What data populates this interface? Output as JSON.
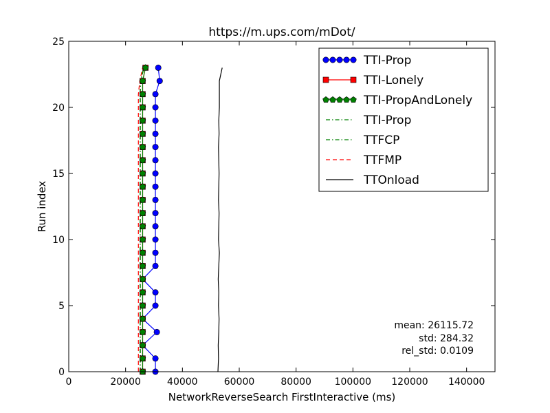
{
  "chart_data": {
    "type": "line",
    "title": "https://m.ups.com/mDot/",
    "xlabel": "NetworkReverseSearch FirstInteractive (ms)",
    "ylabel": "Run index",
    "xlim": [
      0,
      150000
    ],
    "ylim": [
      0,
      25
    ],
    "x_ticks": [
      0,
      20000,
      40000,
      60000,
      80000,
      100000,
      120000,
      140000
    ],
    "y_ticks": [
      0,
      5,
      10,
      15,
      20,
      25
    ],
    "x_tick_labels": [
      "0",
      "20000",
      "40000",
      "60000",
      "80000",
      "100000",
      "120000",
      "140000"
    ],
    "y_tick_labels": [
      "0",
      "5",
      "10",
      "15",
      "20",
      "25"
    ],
    "grid": false,
    "legend_position": "top-right",
    "y": [
      0,
      1,
      2,
      3,
      4,
      5,
      6,
      7,
      8,
      9,
      10,
      11,
      12,
      13,
      14,
      15,
      16,
      17,
      18,
      19,
      20,
      21,
      22,
      23
    ],
    "series": [
      {
        "name": "TTI-Prop",
        "color": "#0000ff",
        "line": "solid",
        "marker": "circle",
        "x": [
          30500,
          30500,
          26000,
          31000,
          26000,
          30500,
          30500,
          26000,
          30500,
          30500,
          30500,
          30500,
          30500,
          30500,
          30500,
          30500,
          30500,
          30500,
          30500,
          30500,
          30500,
          30500,
          32000,
          31500
        ]
      },
      {
        "name": "TTI-Lonely",
        "color": "#ff0000",
        "line": "solid",
        "marker": "square",
        "x": [
          26000,
          26000,
          26000,
          26000,
          26000,
          26000,
          26000,
          26000,
          26000,
          26000,
          26000,
          26000,
          26000,
          26000,
          26000,
          26000,
          26000,
          26000,
          26000,
          26000,
          26000,
          26000,
          26000,
          27000
        ]
      },
      {
        "name": "TTI-PropAndLonely",
        "color": "#008000",
        "line": "solid",
        "marker": "pentagon",
        "x": [
          26000,
          26000,
          26000,
          26000,
          26000,
          26000,
          26000,
          26000,
          26000,
          26000,
          26000,
          26000,
          26000,
          26000,
          26000,
          26000,
          26000,
          26000,
          26000,
          26000,
          26000,
          26000,
          26000,
          27000
        ]
      },
      {
        "name": "TTI-Prop",
        "color": "#008000",
        "line": "dashdot",
        "marker": "none",
        "x": [
          25200,
          25200,
          25200,
          25200,
          25200,
          25200,
          25200,
          25200,
          25200,
          25200,
          25200,
          25200,
          25200,
          25200,
          25200,
          25200,
          25200,
          25200,
          25200,
          25200,
          25200,
          25200,
          25300,
          26500
        ]
      },
      {
        "name": "TTFCP",
        "color": "#008000",
        "line": "dashdot",
        "marker": "none",
        "x": [
          25100,
          25100,
          25100,
          25100,
          25100,
          25100,
          25100,
          25100,
          25100,
          25100,
          25100,
          25100,
          25100,
          25100,
          25100,
          25100,
          25100,
          25100,
          25100,
          25100,
          25100,
          25100,
          25200,
          26400
        ]
      },
      {
        "name": "TTFMP",
        "color": "#ff0000",
        "line": "dashed",
        "marker": "none",
        "x": [
          24500,
          24500,
          24500,
          24500,
          24500,
          24500,
          24500,
          24500,
          24500,
          24500,
          24500,
          24500,
          24500,
          24500,
          24500,
          24500,
          24500,
          24500,
          24500,
          24500,
          24500,
          24500,
          25000,
          26000
        ]
      },
      {
        "name": "TTOnload",
        "color": "#000000",
        "line": "solid",
        "marker": "none",
        "x": [
          52500,
          52700,
          52600,
          52800,
          52900,
          52700,
          52800,
          52600,
          52800,
          53000,
          52700,
          52800,
          52900,
          52700,
          52800,
          52900,
          52800,
          52700,
          52900,
          52800,
          53000,
          53000,
          53000,
          54000
        ]
      }
    ],
    "annotations": [
      "mean: 26115.72",
      "std: 284.32",
      "rel_std: 0.0109"
    ]
  }
}
